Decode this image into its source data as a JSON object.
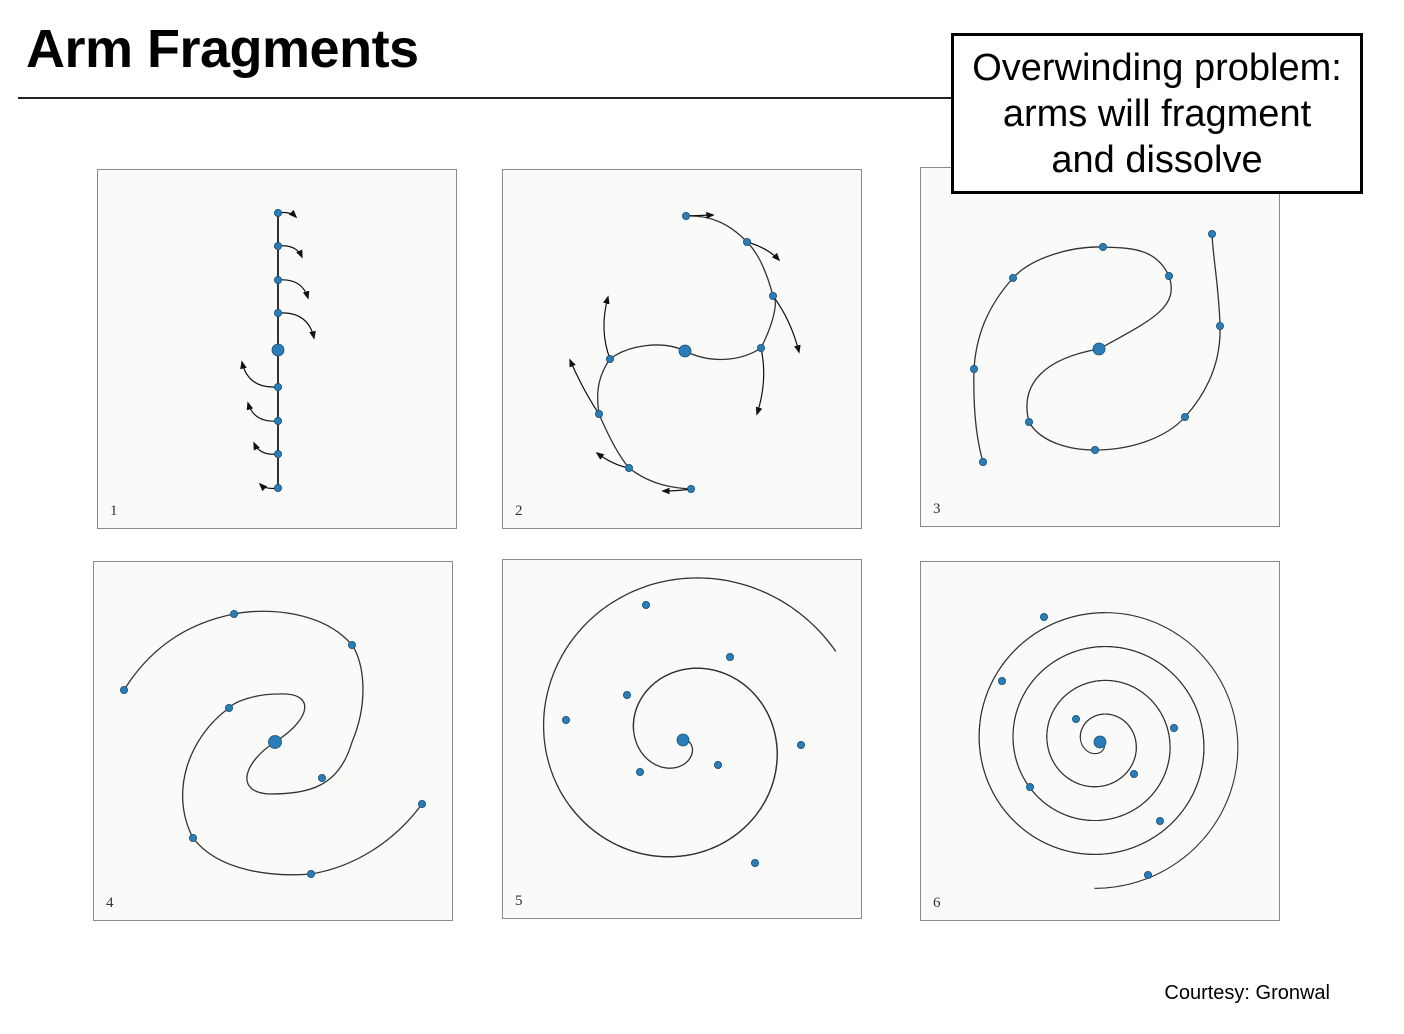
{
  "title": "Arm Fragments",
  "callout": {
    "lines": [
      "Overwinding problem:",
      "arms will fragment",
      "and dissolve"
    ]
  },
  "panels": [
    {
      "number": "1"
    },
    {
      "number": "2"
    },
    {
      "number": "3"
    },
    {
      "number": "4"
    },
    {
      "number": "5"
    },
    {
      "number": "6"
    }
  ],
  "credit": "Courtesy: Gronwal",
  "colors": {
    "node": "#2a7db8",
    "node_outline": "#1a4f74",
    "arm": "#333333",
    "panel_border": "#8a8a8a",
    "panel_bg": "#fafbf8"
  }
}
